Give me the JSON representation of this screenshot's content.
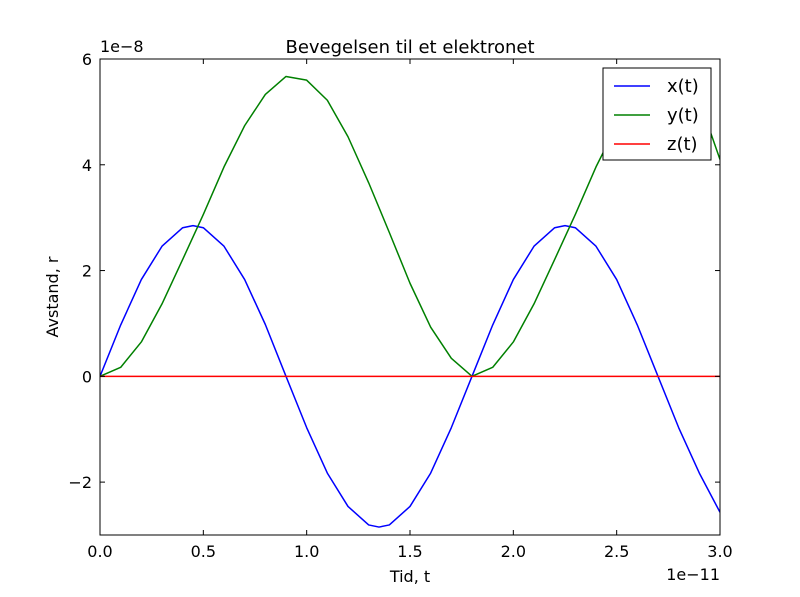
{
  "chart_data": {
    "type": "line",
    "title": "Bevegelsen til et elektronet",
    "xlabel": "Tid, t",
    "ylabel": "Avstand, r",
    "x_offset_label": "1e−11",
    "y_offset_label": "1e−8",
    "xlim": [
      0.0,
      3.0
    ],
    "ylim": [
      -3.0,
      6.0
    ],
    "x_ticks": [
      0.0,
      0.5,
      1.0,
      1.5,
      2.0,
      2.5,
      3.0
    ],
    "x_tick_labels": [
      "0.0",
      "0.5",
      "1.0",
      "1.5",
      "2.0",
      "2.5",
      "3.0"
    ],
    "y_ticks": [
      -2,
      0,
      2,
      4,
      6
    ],
    "y_tick_labels": [
      "−2",
      "0",
      "2",
      "4",
      "6"
    ],
    "grid": false,
    "legend_position": "top-right",
    "series": [
      {
        "name": "x(t)",
        "color": "#0000ff",
        "x": [
          0.0,
          0.1,
          0.2,
          0.3,
          0.4,
          0.45,
          0.5,
          0.6,
          0.7,
          0.8,
          0.9,
          1.0,
          1.1,
          1.2,
          1.3,
          1.35,
          1.4,
          1.5,
          1.6,
          1.7,
          1.8,
          1.9,
          2.0,
          2.1,
          2.2,
          2.25,
          2.3,
          2.4,
          2.5,
          2.6,
          2.7,
          2.8,
          2.9,
          3.0
        ],
        "y": [
          0.0,
          0.97,
          1.83,
          2.46,
          2.81,
          2.85,
          2.81,
          2.46,
          1.83,
          0.98,
          0.0,
          -0.97,
          -1.83,
          -2.46,
          -2.81,
          -2.85,
          -2.81,
          -2.46,
          -1.83,
          -0.97,
          0.0,
          0.97,
          1.83,
          2.46,
          2.81,
          2.85,
          2.81,
          2.46,
          1.83,
          0.97,
          0.0,
          -0.97,
          -1.83,
          -2.57
        ]
      },
      {
        "name": "y(t)",
        "color": "#008000",
        "x": [
          0.0,
          0.1,
          0.2,
          0.3,
          0.4,
          0.5,
          0.6,
          0.7,
          0.8,
          0.9,
          1.0,
          1.1,
          1.2,
          1.3,
          1.4,
          1.5,
          1.6,
          1.7,
          1.8,
          1.9,
          2.0,
          2.1,
          2.2,
          2.3,
          2.4,
          2.5,
          2.6,
          2.7,
          2.8,
          2.9,
          3.0
        ],
        "y": [
          0.0,
          0.17,
          0.65,
          1.37,
          2.21,
          3.06,
          3.96,
          4.74,
          5.33,
          5.67,
          5.6,
          5.22,
          4.53,
          3.66,
          2.72,
          1.76,
          0.93,
          0.34,
          0.0,
          0.17,
          0.65,
          1.37,
          2.21,
          3.06,
          3.96,
          4.74,
          5.33,
          5.67,
          5.6,
          5.22,
          4.1
        ]
      },
      {
        "name": "z(t)",
        "color": "#ff0000",
        "x": [
          0.0,
          3.0
        ],
        "y": [
          0.0,
          0.0
        ]
      }
    ]
  }
}
